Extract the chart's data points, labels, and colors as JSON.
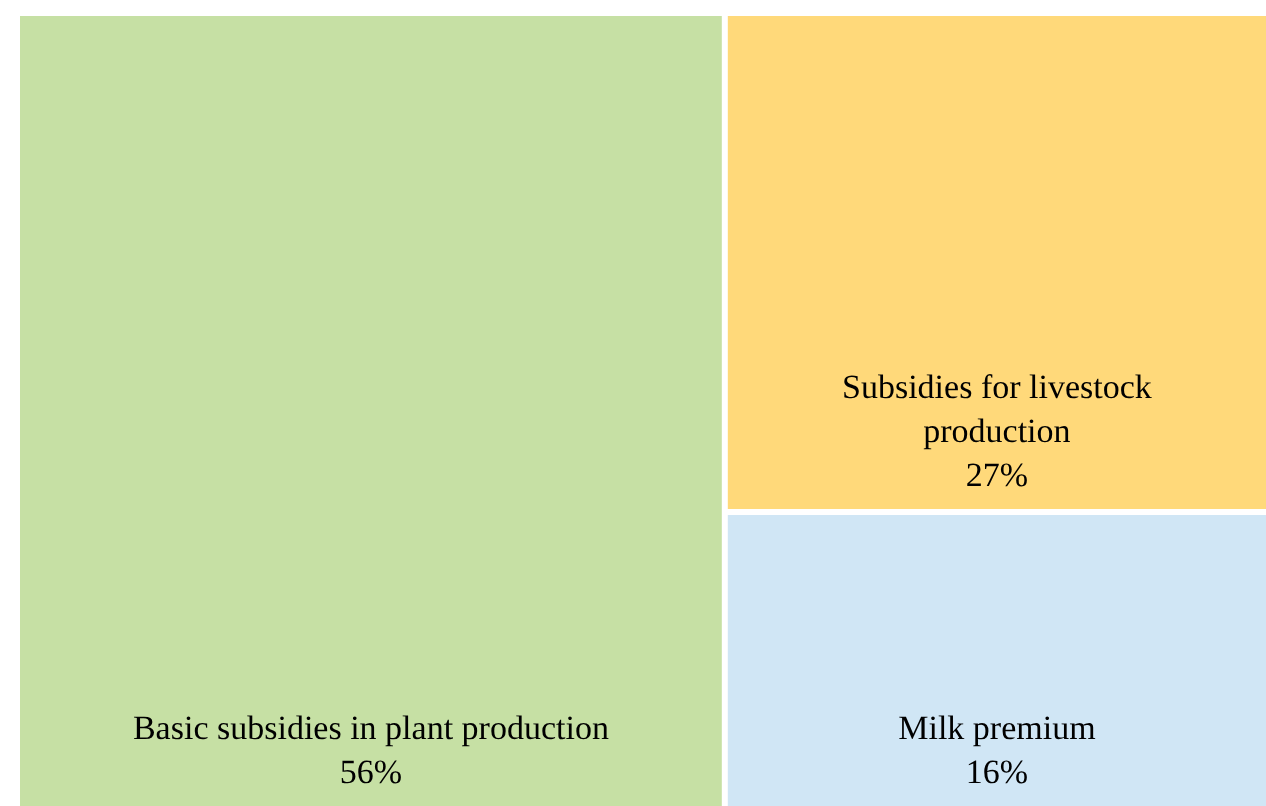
{
  "chart_data": {
    "type": "other",
    "categories": [
      "Basic subsidies in plant production",
      "Subsidies for livestock production",
      "Milk premium"
    ],
    "values": [
      56,
      27,
      16
    ],
    "value_labels": [
      "56%",
      "27%",
      "16%"
    ],
    "colors": [
      "#c6e0a4",
      "#ffd97a",
      "#d0e6f5"
    ]
  }
}
